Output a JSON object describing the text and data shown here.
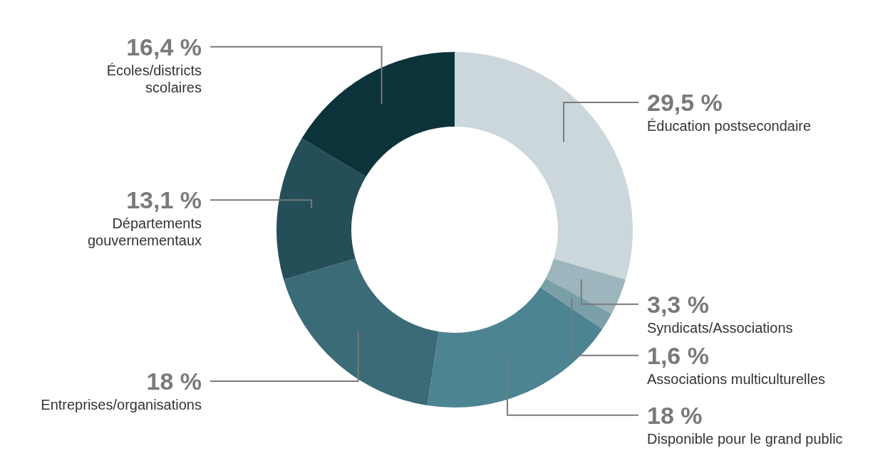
{
  "chart_data": {
    "type": "donut",
    "categories": [
      "Éducation postsecondaire",
      "Syndicats/Associations",
      "Associations multiculturelles",
      "Disponible pour le grand public",
      "Entreprises/organisations",
      "Départements gouvernementaux",
      "Écoles/districts scolaires"
    ],
    "values": [
      29.5,
      3.3,
      1.6,
      18,
      18,
      13.1,
      16.4
    ],
    "colors": [
      "#cbd7db",
      "#9db5bc",
      "#7a9fa8",
      "#4d8492",
      "#3b6b76",
      "#244f58",
      "#0c323a"
    ],
    "value_labels": [
      "29,5 %",
      "3,3 %",
      "1,6 %",
      "18 %",
      "18 %",
      "13,1 %",
      "16,4 %"
    ]
  }
}
